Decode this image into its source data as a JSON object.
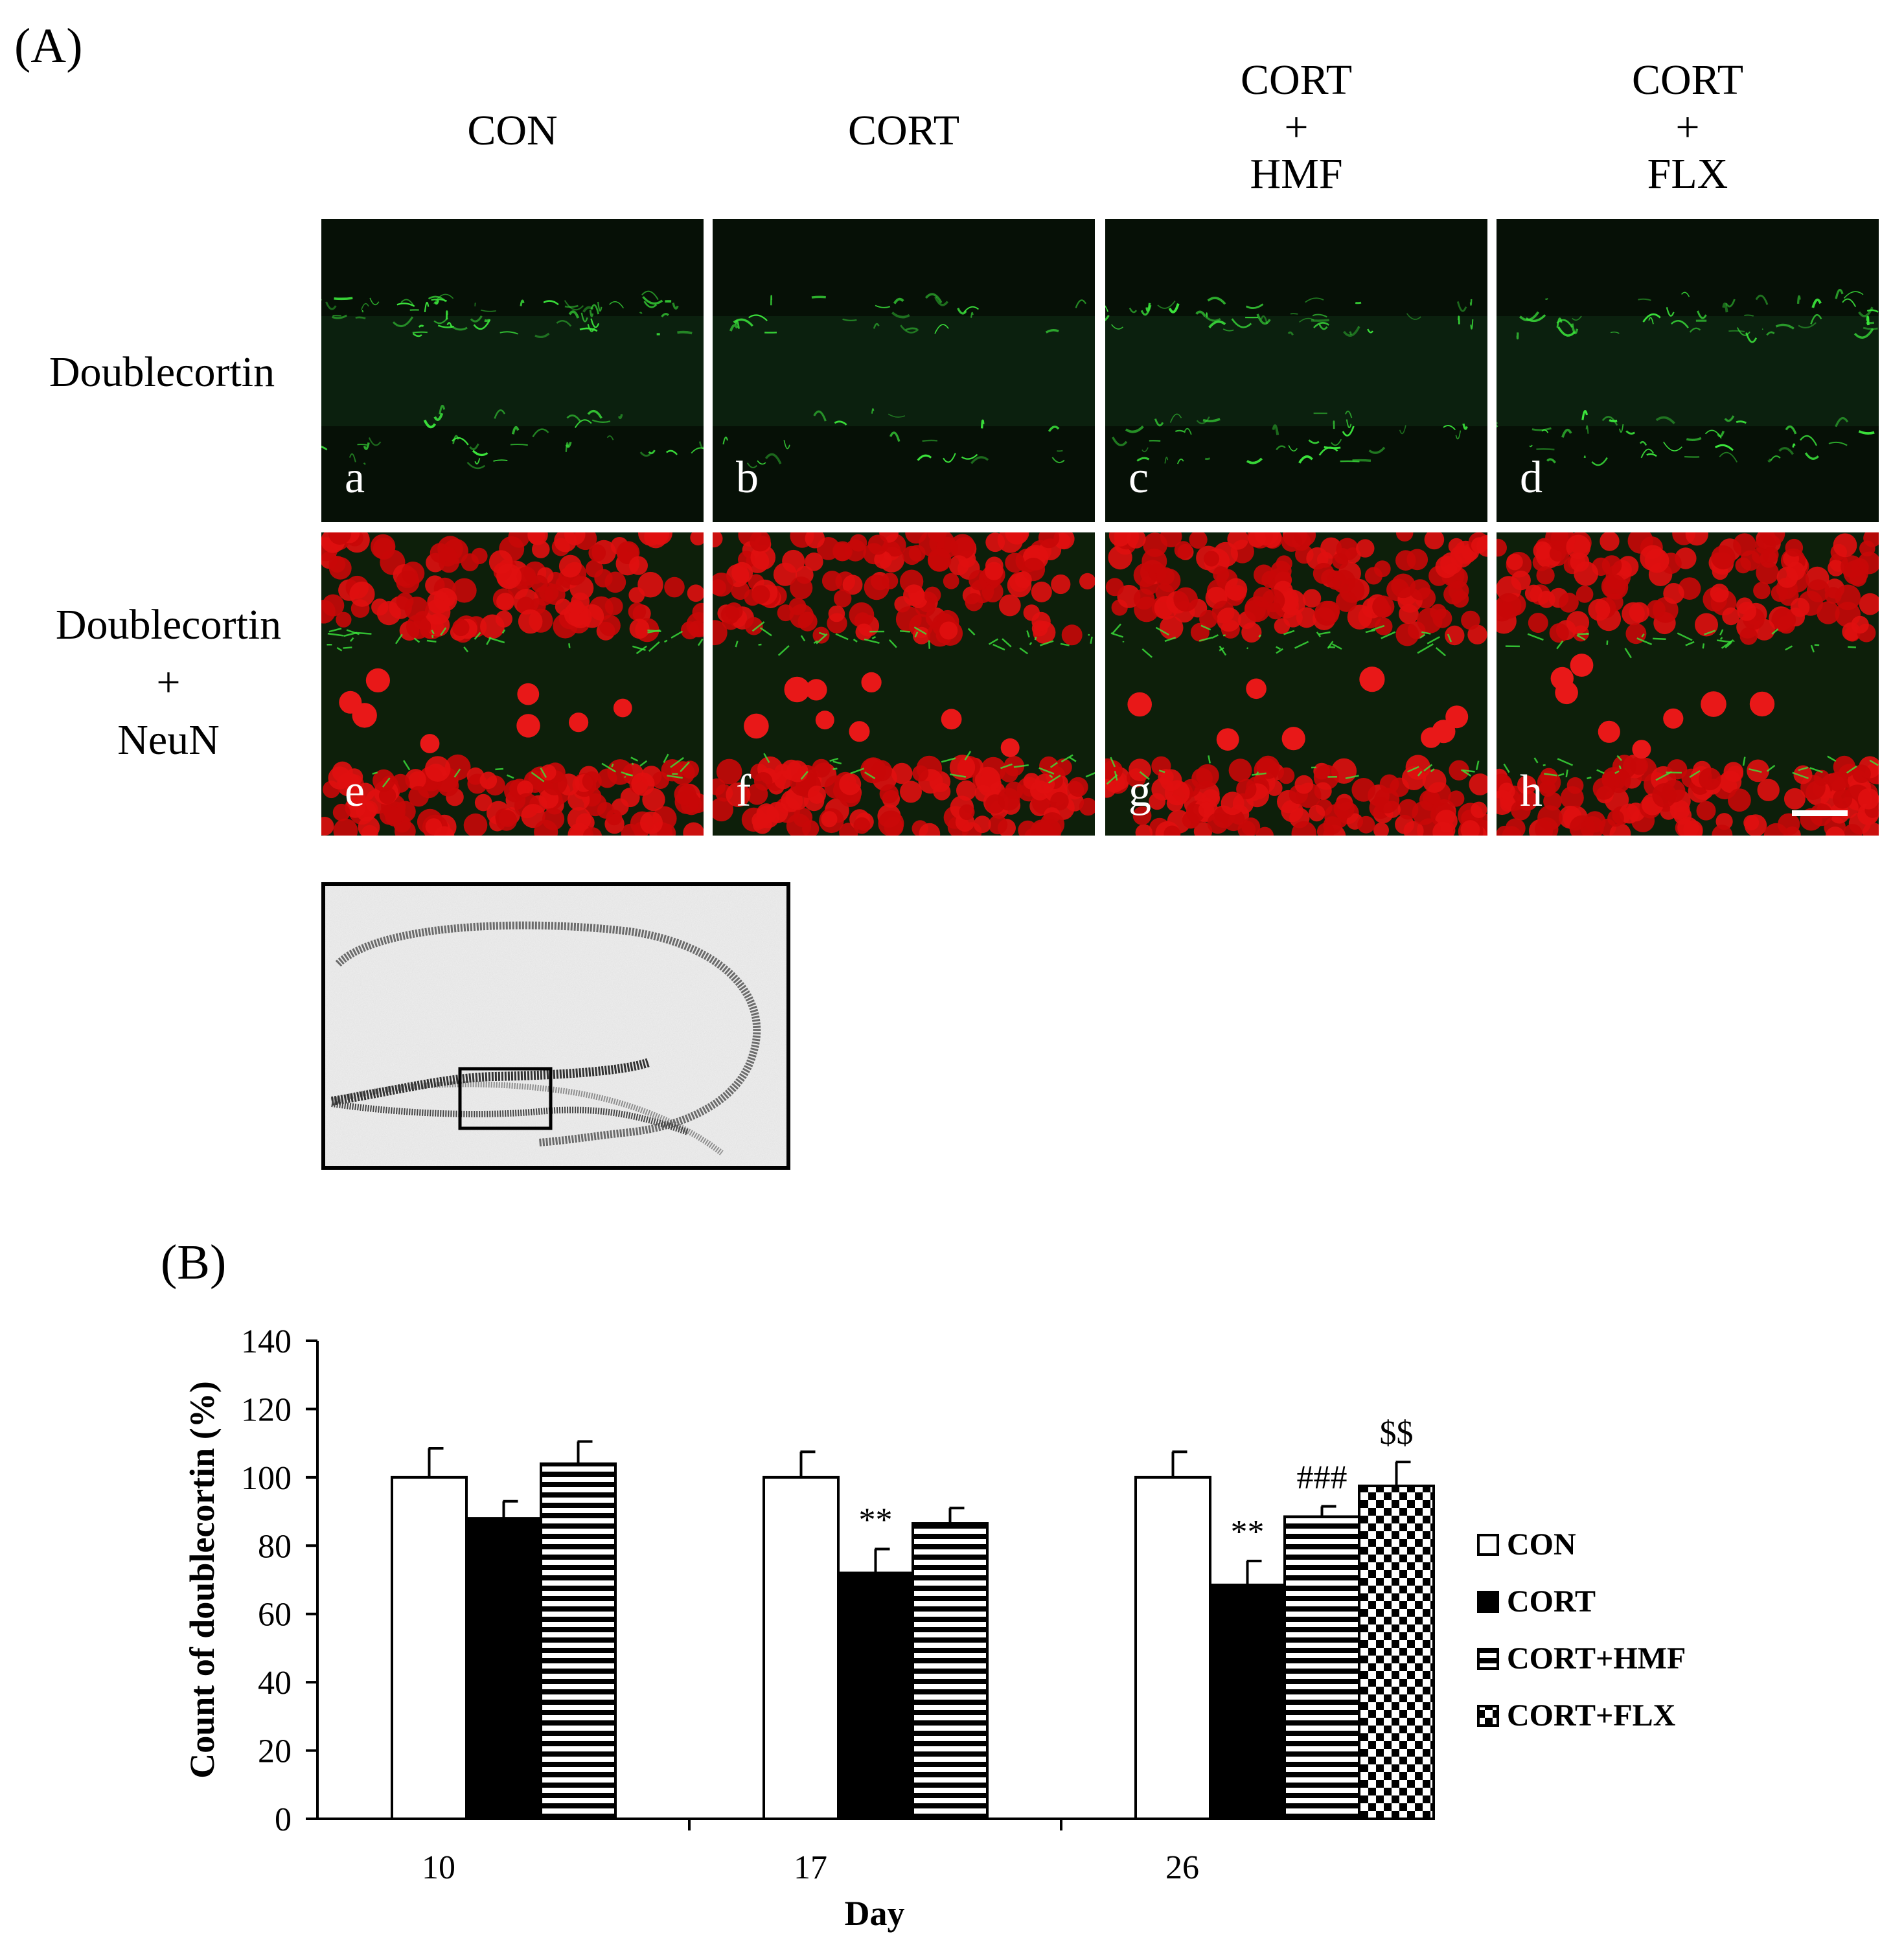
{
  "panel_a": {
    "label": "(A)",
    "columns": [
      {
        "lines": [
          "CON"
        ]
      },
      {
        "lines": [
          "CORT"
        ]
      },
      {
        "lines": [
          "CORT",
          "+",
          "HMF"
        ]
      },
      {
        "lines": [
          "CORT",
          "+",
          "FLX"
        ]
      }
    ],
    "rows": [
      {
        "lines": [
          "Doublecortin"
        ]
      },
      {
        "lines": [
          "Doublecortin",
          "+",
          "NeuN"
        ]
      }
    ],
    "subpanel_letters": [
      "a",
      "b",
      "c",
      "d",
      "e",
      "f",
      "g",
      "h"
    ]
  },
  "panel_b": {
    "label": "(B)"
  },
  "chart_data": {
    "type": "bar",
    "title": "",
    "xlabel": "Day",
    "ylabel": "Count of doublecortin (%)",
    "categories": [
      "10",
      "17",
      "26"
    ],
    "ylim": [
      0,
      140
    ],
    "yticks": [
      0,
      20,
      40,
      60,
      80,
      100,
      120,
      140
    ],
    "series": [
      {
        "name": "CON",
        "values": [
          100,
          100,
          100
        ],
        "errors": [
          8.5,
          7.5,
          7.5
        ],
        "fill": "white"
      },
      {
        "name": "CORT",
        "values": [
          88,
          72,
          68.5
        ],
        "errors": [
          5,
          7,
          7
        ],
        "fill": "black"
      },
      {
        "name": "CORT+HMF",
        "values": [
          104,
          86.5,
          88.5
        ],
        "errors": [
          6.5,
          4.5,
          3
        ],
        "fill": "horizontal-stripes"
      },
      {
        "name": "CORT+FLX",
        "values": [
          null,
          null,
          97.5
        ],
        "errors": [
          null,
          null,
          7
        ],
        "fill": "checkerboard"
      }
    ],
    "annotations": [
      {
        "category": "17",
        "series": "CORT",
        "text": "**"
      },
      {
        "category": "26",
        "series": "CORT",
        "text": "**"
      },
      {
        "category": "26",
        "series": "CORT+HMF",
        "text": "###"
      },
      {
        "category": "26",
        "series": "CORT+FLX",
        "text": "$$"
      }
    ],
    "legend_position": "right",
    "grid": false
  }
}
